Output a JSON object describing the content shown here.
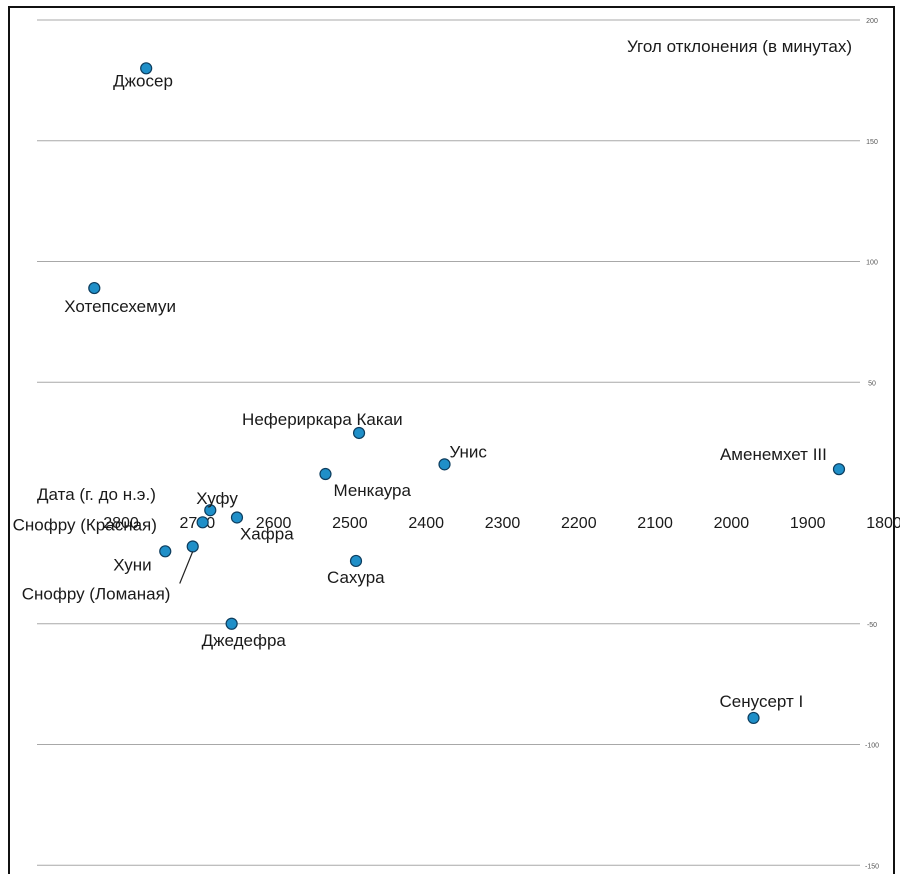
{
  "chart_data": {
    "type": "scatter",
    "title": "",
    "ylabel": "Угол отклонения (в минутах)",
    "xlabel": "Дата (г. до н.э.)",
    "x_reversed": true,
    "xlim": [
      2870,
      1800
    ],
    "ylim": [
      -150,
      200
    ],
    "x_ticks": [
      2800,
      2700,
      2600,
      2500,
      2400,
      2300,
      2200,
      2100,
      2000,
      1900,
      1800
    ],
    "x_tick_labels": [
      "2800",
      "2700",
      "2600",
      "2500",
      "2400",
      "2300",
      "2200",
      "2100",
      "2000",
      "1900",
      "1800"
    ],
    "y_ticks": [
      200,
      150,
      100,
      50,
      -50,
      -100,
      -150
    ],
    "y_tick_labels": [
      "200",
      "150",
      "100",
      "50",
      "-50",
      "-100",
      "-150"
    ],
    "grid": true,
    "colors": {
      "point": "#1f8fc8",
      "point_stroke": "#0d3d5e",
      "grid": "#a8a8a8",
      "text": "#1a1a1a"
    },
    "points": [
      {
        "label": "Джосер",
        "x": 2767,
        "y": 180
      },
      {
        "label": "Хотепсехемуи",
        "x": 2835,
        "y": 89
      },
      {
        "label": "Нефериркара Какаи",
        "x": 2488,
        "y": 29
      },
      {
        "label": "Унис",
        "x": 2376,
        "y": 16
      },
      {
        "label": "Аменемхет III",
        "x": 1859,
        "y": 14
      },
      {
        "label": "Менкаура",
        "x": 2532,
        "y": 12
      },
      {
        "label": "Хуфу",
        "x": 2683,
        "y": -3
      },
      {
        "label": "Снофру (Красная)",
        "x": 2693,
        "y": -8
      },
      {
        "label": "Хафра",
        "x": 2648,
        "y": -6
      },
      {
        "label": "Снофру (Ломаная)",
        "x": 2706,
        "y": -18
      },
      {
        "label": "Хуни",
        "x": 2742,
        "y": -20
      },
      {
        "label": "Сахура",
        "x": 2492,
        "y": -24
      },
      {
        "label": "Джедефра",
        "x": 2655,
        "y": -50
      },
      {
        "label": "Сенусерт I",
        "x": 1971,
        "y": -89
      }
    ]
  }
}
